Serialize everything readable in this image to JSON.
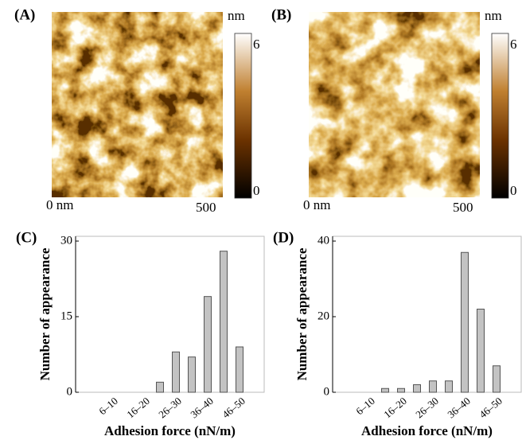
{
  "images": [
    {
      "label": "(A)",
      "unit": "nm",
      "scale_max": "6",
      "scale_min": "0",
      "x_start": "0 nm",
      "x_end": "500"
    },
    {
      "label": "(B)",
      "unit": "nm",
      "scale_max": "6",
      "scale_min": "0",
      "x_start": "0 nm",
      "x_end": "500"
    }
  ],
  "chart_data": [
    {
      "type": "bar",
      "panel_label": "(C)",
      "y_label": "Number of appearance",
      "x_label": "Adhesion force (nN/m)",
      "categories": [
        null,
        "6–10",
        null,
        "16–20",
        null,
        "26–30",
        null,
        "36–40",
        null,
        "46–50"
      ],
      "values": [
        0,
        0,
        0,
        0,
        2,
        8,
        7,
        19,
        28,
        9
      ],
      "color": "#c3c3c3",
      "ylim": [
        0,
        30
      ],
      "yticks": [
        0,
        15,
        30
      ]
    },
    {
      "type": "bar",
      "panel_label": "(D)",
      "y_label": "Number of appearance",
      "x_label": "Adhesion force (nN/m)",
      "categories": [
        null,
        "6–10",
        null,
        "16–20",
        null,
        "26–30",
        null,
        "36–40",
        null,
        "46–50"
      ],
      "values": [
        0,
        0,
        1,
        1,
        2,
        3,
        3,
        37,
        22,
        7
      ],
      "color": "#c3c3c3",
      "ylim": [
        0,
        40
      ],
      "yticks": [
        0,
        20,
        40
      ]
    }
  ]
}
